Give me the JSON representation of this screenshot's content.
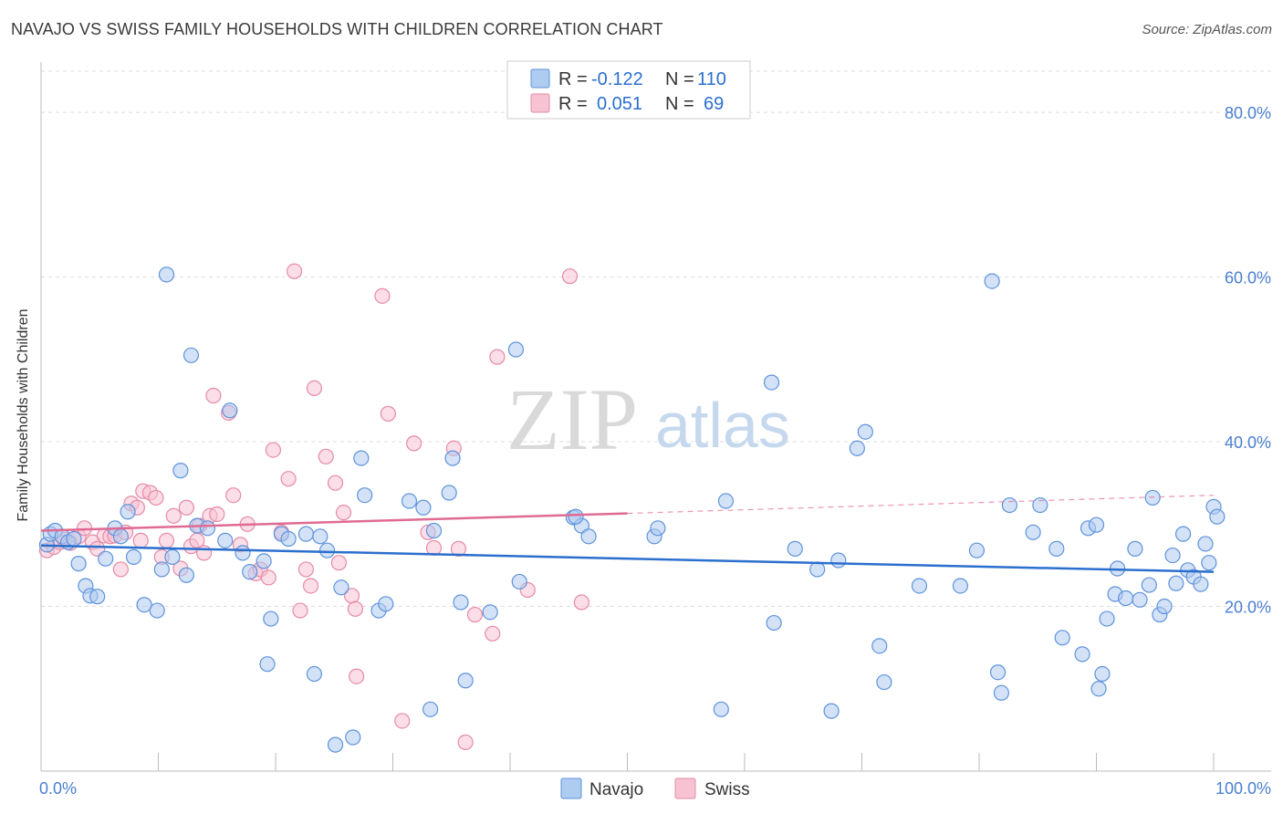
{
  "title": "NAVAJO VS SWISS FAMILY HOUSEHOLDS WITH CHILDREN CORRELATION CHART",
  "source": "Source: ZipAtlas.com",
  "watermark": {
    "zip": "ZIP",
    "atlas": "atlas"
  },
  "colors": {
    "navajo_fill": "#aecbf0",
    "navajo_stroke": "#5e93dc",
    "navajo_line": "#2b6fce",
    "swiss_fill": "#f7c3d3",
    "swiss_stroke": "#e68aa6",
    "swiss_line": "#e06a93",
    "grid": "#dddddd",
    "axis_label": "#4a7fd0"
  },
  "stats": [
    {
      "r_label": "R =",
      "r_value": "-0.122",
      "n_label": "N =",
      "n_value": "110"
    },
    {
      "r_label": "R =",
      "r_value": "0.051",
      "n_label": "N =",
      "n_value": "69"
    }
  ],
  "chart_data": {
    "type": "scatter",
    "title": "NAVAJO VS SWISS FAMILY HOUSEHOLDS WITH CHILDREN CORRELATION CHART",
    "xlabel": "",
    "ylabel": "Family Households with Children",
    "xlim": [
      0,
      100
    ],
    "ylim": [
      0,
      85
    ],
    "x_tick_labels": [
      "0.0%",
      "100.0%"
    ],
    "y_ticks": [
      20,
      40,
      60,
      80
    ],
    "y_tick_labels": [
      "20.0%",
      "40.0%",
      "60.0%",
      "80.0%"
    ],
    "grid": true,
    "legend_position": "bottom-center",
    "series": [
      {
        "name": "Navajo",
        "trend": {
          "x0": 0,
          "y0": 27.4,
          "x1": 100,
          "y1": 24.2
        },
        "points": [
          [
            0.5,
            27.5
          ],
          [
            0.8,
            28.8
          ],
          [
            1.2,
            29.2
          ],
          [
            1.8,
            28.5
          ],
          [
            2.3,
            27.8
          ],
          [
            2.8,
            28.2
          ],
          [
            3.2,
            25.2
          ],
          [
            3.8,
            22.5
          ],
          [
            4.2,
            21.3
          ],
          [
            4.8,
            21.2
          ],
          [
            5.5,
            25.8
          ],
          [
            6.3,
            29.5
          ],
          [
            6.8,
            28.5
          ],
          [
            7.4,
            31.5
          ],
          [
            7.9,
            26
          ],
          [
            8.8,
            20.2
          ],
          [
            9.9,
            19.5
          ],
          [
            10.3,
            24.5
          ],
          [
            10.7,
            60.3
          ],
          [
            11.2,
            26
          ],
          [
            11.9,
            36.5
          ],
          [
            12.4,
            23.8
          ],
          [
            12.8,
            50.5
          ],
          [
            13.3,
            29.8
          ],
          [
            14.2,
            29.5
          ],
          [
            15.7,
            28
          ],
          [
            16.1,
            43.8
          ],
          [
            17.2,
            26.5
          ],
          [
            17.8,
            24.2
          ],
          [
            19,
            25.5
          ],
          [
            19.3,
            13
          ],
          [
            19.6,
            18.5
          ],
          [
            20.5,
            28.8
          ],
          [
            21.1,
            28.2
          ],
          [
            22.6,
            28.8
          ],
          [
            23.3,
            11.8
          ],
          [
            23.8,
            28.5
          ],
          [
            24.4,
            26.8
          ],
          [
            25.1,
            3.2
          ],
          [
            25.6,
            22.3
          ],
          [
            26.6,
            4.1
          ],
          [
            27.3,
            38
          ],
          [
            27.6,
            33.5
          ],
          [
            28.8,
            19.5
          ],
          [
            29.4,
            20.3
          ],
          [
            31.4,
            32.8
          ],
          [
            32.6,
            32
          ],
          [
            33.2,
            7.5
          ],
          [
            34.8,
            33.8
          ],
          [
            35.1,
            38
          ],
          [
            35.8,
            20.5
          ],
          [
            36.2,
            11
          ],
          [
            38.3,
            19.3
          ],
          [
            40.5,
            51.2
          ],
          [
            40.8,
            23
          ],
          [
            45.4,
            30.8
          ],
          [
            46.1,
            29.8
          ],
          [
            46.7,
            28.5
          ],
          [
            52.3,
            28.5
          ],
          [
            52.6,
            29.5
          ],
          [
            58,
            7.5
          ],
          [
            58.4,
            32.8
          ],
          [
            62.3,
            47.2
          ],
          [
            62.5,
            18
          ],
          [
            64.3,
            27
          ],
          [
            66.2,
            24.5
          ],
          [
            67.4,
            7.3
          ],
          [
            68,
            25.6
          ],
          [
            69.6,
            39.2
          ],
          [
            70.3,
            41.2
          ],
          [
            71.5,
            15.2
          ],
          [
            71.9,
            10.8
          ],
          [
            74.9,
            22.5
          ],
          [
            78.4,
            22.5
          ],
          [
            79.8,
            26.8
          ],
          [
            81.1,
            59.5
          ],
          [
            81.6,
            12
          ],
          [
            81.9,
            9.5
          ],
          [
            82.6,
            32.3
          ],
          [
            84.6,
            29
          ],
          [
            85.2,
            32.3
          ],
          [
            86.6,
            27
          ],
          [
            87.1,
            16.2
          ],
          [
            88.8,
            14.2
          ],
          [
            89.3,
            29.5
          ],
          [
            90,
            29.9
          ],
          [
            90.2,
            10
          ],
          [
            90.5,
            11.8
          ],
          [
            90.9,
            18.5
          ],
          [
            91.6,
            21.5
          ],
          [
            91.8,
            24.6
          ],
          [
            92.5,
            21
          ],
          [
            93.3,
            27
          ],
          [
            93.7,
            20.8
          ],
          [
            94.5,
            22.6
          ],
          [
            94.8,
            33.2
          ],
          [
            95.4,
            19
          ],
          [
            95.8,
            20
          ],
          [
            96.5,
            26.2
          ],
          [
            96.8,
            22.8
          ],
          [
            97.4,
            28.8
          ],
          [
            97.8,
            24.4
          ],
          [
            98.3,
            23.6
          ],
          [
            98.9,
            22.7
          ],
          [
            99.3,
            27.6
          ],
          [
            99.6,
            25.3
          ],
          [
            100,
            32.1
          ],
          [
            100.3,
            30.9
          ],
          [
            33.5,
            29.2
          ],
          [
            45.6,
            30.9
          ]
        ]
      },
      {
        "name": "Swiss",
        "trend": {
          "x0": 0,
          "y0": 29.2,
          "x1": 50,
          "y1": 31.3
        },
        "trend_extension": {
          "x0": 50,
          "y0": 31.3,
          "x1": 100,
          "y1": 33.5
        },
        "points": [
          [
            0.5,
            26.8
          ],
          [
            1.1,
            27.2
          ],
          [
            1.6,
            27.8
          ],
          [
            2,
            28.1
          ],
          [
            2.5,
            27.7
          ],
          [
            3.2,
            28.5
          ],
          [
            3.7,
            29.5
          ],
          [
            4.4,
            27.8
          ],
          [
            4.8,
            27
          ],
          [
            5.4,
            28.6
          ],
          [
            5.9,
            28.5
          ],
          [
            6.3,
            28.6
          ],
          [
            6.8,
            24.5
          ],
          [
            7.2,
            29
          ],
          [
            7.7,
            32.5
          ],
          [
            8.2,
            32
          ],
          [
            8.7,
            34
          ],
          [
            9.3,
            33.8
          ],
          [
            9.8,
            33.2
          ],
          [
            10.3,
            26
          ],
          [
            10.7,
            28
          ],
          [
            11.3,
            31
          ],
          [
            11.9,
            24.6
          ],
          [
            12.4,
            32
          ],
          [
            12.8,
            27.3
          ],
          [
            13.3,
            28
          ],
          [
            13.9,
            26.5
          ],
          [
            14.4,
            31
          ],
          [
            14.7,
            45.6
          ],
          [
            15,
            31.2
          ],
          [
            16,
            43.5
          ],
          [
            16.4,
            33.5
          ],
          [
            17,
            27.5
          ],
          [
            17.6,
            30
          ],
          [
            18.3,
            24
          ],
          [
            18.7,
            24.5
          ],
          [
            19.4,
            23.5
          ],
          [
            19.8,
            39
          ],
          [
            20.5,
            29
          ],
          [
            21.1,
            35.5
          ],
          [
            21.6,
            60.7
          ],
          [
            22.1,
            19.5
          ],
          [
            22.6,
            24.5
          ],
          [
            23,
            22.5
          ],
          [
            23.3,
            46.5
          ],
          [
            24.3,
            38.2
          ],
          [
            25.1,
            35
          ],
          [
            25.4,
            25.3
          ],
          [
            25.8,
            31.4
          ],
          [
            26.5,
            21.3
          ],
          [
            26.8,
            19.7
          ],
          [
            26.9,
            11.5
          ],
          [
            29.1,
            57.7
          ],
          [
            29.6,
            43.4
          ],
          [
            30.8,
            6.1
          ],
          [
            31.8,
            39.8
          ],
          [
            33,
            29
          ],
          [
            33.5,
            27.1
          ],
          [
            35.2,
            39.2
          ],
          [
            35.6,
            27
          ],
          [
            36.2,
            3.5
          ],
          [
            37,
            19
          ],
          [
            38.5,
            16.7
          ],
          [
            38.9,
            50.3
          ],
          [
            41.5,
            22
          ],
          [
            45.1,
            60.1
          ],
          [
            46.1,
            20.5
          ],
          [
            13.5,
            29.8
          ],
          [
            8.5,
            28
          ]
        ]
      }
    ]
  },
  "legend": [
    {
      "label": "Navajo"
    },
    {
      "label": "Swiss"
    }
  ]
}
